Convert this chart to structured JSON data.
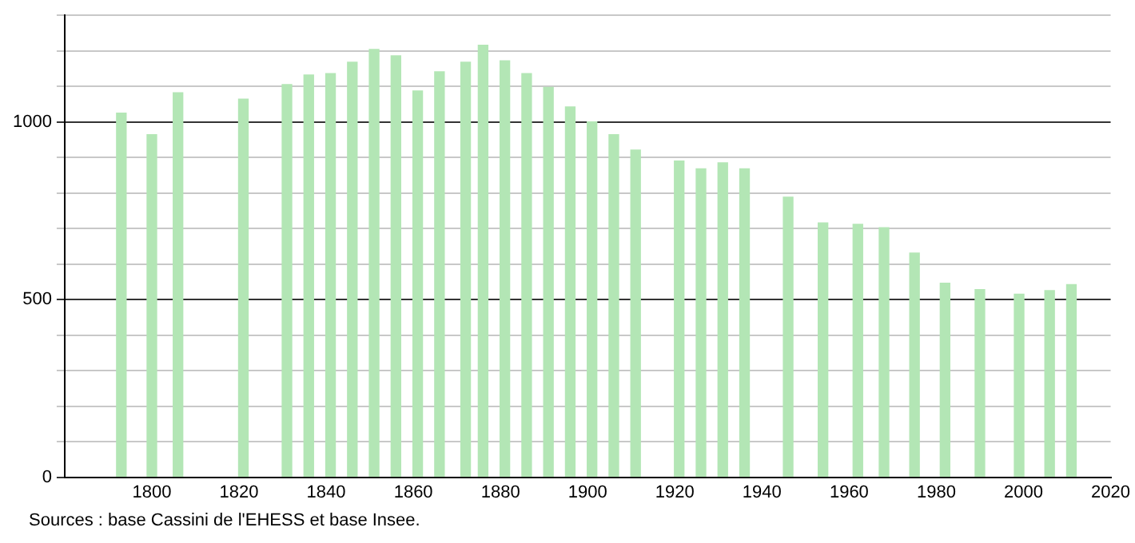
{
  "chart_data": {
    "type": "bar",
    "x": [
      1793,
      1800,
      1806,
      1821,
      1831,
      1836,
      1841,
      1846,
      1851,
      1856,
      1861,
      1866,
      1872,
      1876,
      1881,
      1886,
      1891,
      1896,
      1901,
      1906,
      1911,
      1921,
      1926,
      1931,
      1936,
      1946,
      1954,
      1962,
      1968,
      1975,
      1982,
      1990,
      1999,
      2006,
      2011
    ],
    "values": [
      1025,
      964,
      1082,
      1064,
      1105,
      1132,
      1136,
      1168,
      1204,
      1186,
      1087,
      1141,
      1168,
      1216,
      1172,
      1136,
      1097,
      1042,
      1000,
      964,
      921,
      890,
      868,
      885,
      868,
      788,
      716,
      712,
      702,
      631,
      546,
      528,
      515,
      525,
      542
    ],
    "color": "#b3e6b5",
    "xlim": [
      1780,
      2020
    ],
    "xticks": [
      1800,
      1820,
      1840,
      1860,
      1880,
      1900,
      1920,
      1940,
      1960,
      1980,
      2000,
      2020
    ],
    "ylim": [
      0,
      1300
    ],
    "yticks": [
      0,
      {
        "value": 100,
        "label": null
      },
      {
        "value": 200,
        "label": null
      },
      {
        "value": 300,
        "label": null
      },
      {
        "value": 400,
        "label": null
      },
      500,
      {
        "value": 600,
        "label": null
      },
      {
        "value": 700,
        "label": null
      },
      {
        "value": 800,
        "label": null
      },
      {
        "value": 900,
        "label": null
      },
      1000,
      {
        "value": 1100,
        "label": null
      },
      {
        "value": 1200,
        "label": null
      },
      {
        "value": 1300,
        "label": null
      }
    ],
    "grid": "y",
    "annotations": [
      "Sources : base Cassini de l'EHESS et base Insee."
    ]
  }
}
